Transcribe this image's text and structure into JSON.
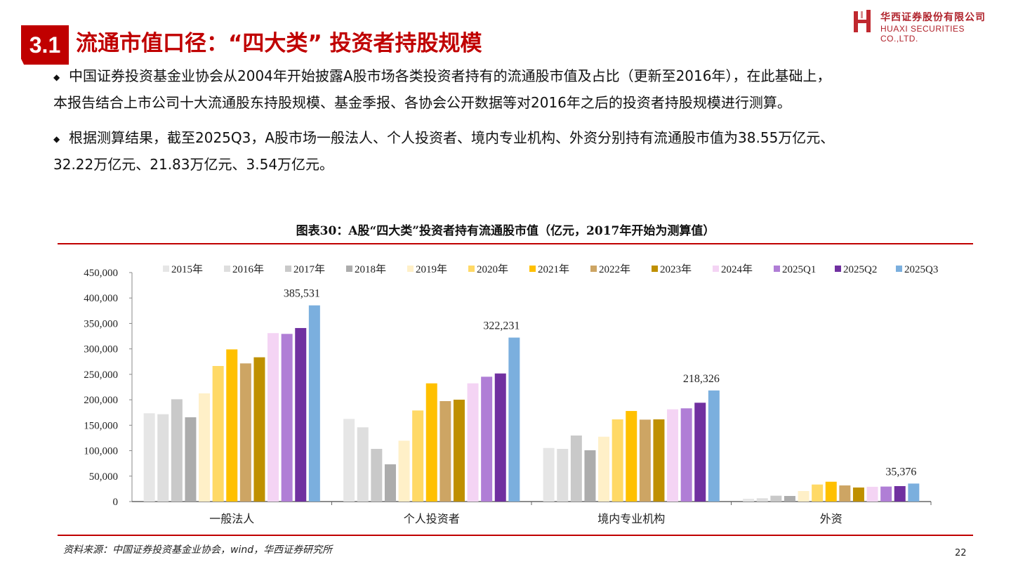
{
  "header": {
    "section_number": "3.1",
    "title": "流通市值口径：“四大类” 投资者持股规模",
    "logo_cn": "华西证券股份有限公司",
    "logo_en": "HUAXI SECURITIES CO.,LTD."
  },
  "bullets": [
    {
      "lines": [
        "中国证券投资基金业协会从2004年开始披露A股市场各类投资者持有的流通股市值及占比（更新至2016年），在此基础上，",
        "本报告结合上市公司十大流通股东持股规模、基金季报、各协会公开数据等对2016年之后的投资者持股规模进行测算。"
      ]
    },
    {
      "lines": [
        "根据测算结果，截至2025Q3，A股市场一般法人、个人投资者、境内专业机构、外资分别持有流通股市值为38.55万亿元、",
        "32.22万亿元、21.83万亿元、3.54万亿元。"
      ]
    }
  ],
  "chart_data": {
    "type": "bar",
    "title": "图表30：A股“四大类”投资者持有流通股市值（亿元，2017年开始为测算值）",
    "categories": [
      "一般法人",
      "个人投资者",
      "境内专业机构",
      "外资"
    ],
    "ylim": [
      0,
      450000
    ],
    "yticks": [
      "0",
      "50,000",
      "100,000",
      "150,000",
      "200,000",
      "250,000",
      "300,000",
      "350,000",
      "400,000",
      "450,000"
    ],
    "grid": false,
    "legend_position": "top",
    "series": [
      {
        "name": "2015年",
        "color": "#e6e6e6",
        "values": [
          173500,
          162400,
          105300,
          5500
        ]
      },
      {
        "name": "2016年",
        "color": "#dedede",
        "values": [
          171600,
          145900,
          103500,
          6500
        ]
      },
      {
        "name": "2017年",
        "color": "#c9c9c9",
        "values": [
          201000,
          103500,
          129800,
          11500
        ]
      },
      {
        "name": "2018年",
        "color": "#acacac",
        "values": [
          165600,
          73200,
          100800,
          11000
        ]
      },
      {
        "name": "2019年",
        "color": "#fff0c8",
        "values": [
          212600,
          119600,
          127400,
          20700
        ]
      },
      {
        "name": "2020年",
        "color": "#ffd966",
        "values": [
          266400,
          179000,
          161500,
          33500
        ]
      },
      {
        "name": "2021年",
        "color": "#ffc000",
        "values": [
          299000,
          232300,
          178000,
          39000
        ]
      },
      {
        "name": "2022年",
        "color": "#cda564",
        "values": [
          271500,
          197400,
          161000,
          31700
        ]
      },
      {
        "name": "2023年",
        "color": "#bf9000",
        "values": [
          283500,
          200200,
          161500,
          27600
        ]
      },
      {
        "name": "2024年",
        "color": "#f4d4f4",
        "values": [
          331000,
          232300,
          181300,
          29000
        ]
      },
      {
        "name": "2025Q1",
        "color": "#b07ed6",
        "values": [
          329500,
          245300,
          183200,
          29500
        ]
      },
      {
        "name": "2025Q2",
        "color": "#7030a0",
        "values": [
          341000,
          251700,
          194200,
          30400
        ]
      },
      {
        "name": "2025Q3",
        "color": "#7bafde",
        "values": [
          385531,
          322231,
          218326,
          35376
        ]
      }
    ],
    "data_labels": [
      "385,531",
      "322,231",
      "218,326",
      "35,376"
    ]
  },
  "footer": {
    "source": "资料来源：中国证券投资基金业协会，wind，华西证券研究所",
    "page_number": "22"
  },
  "colors": {
    "accent": "#c00000"
  }
}
